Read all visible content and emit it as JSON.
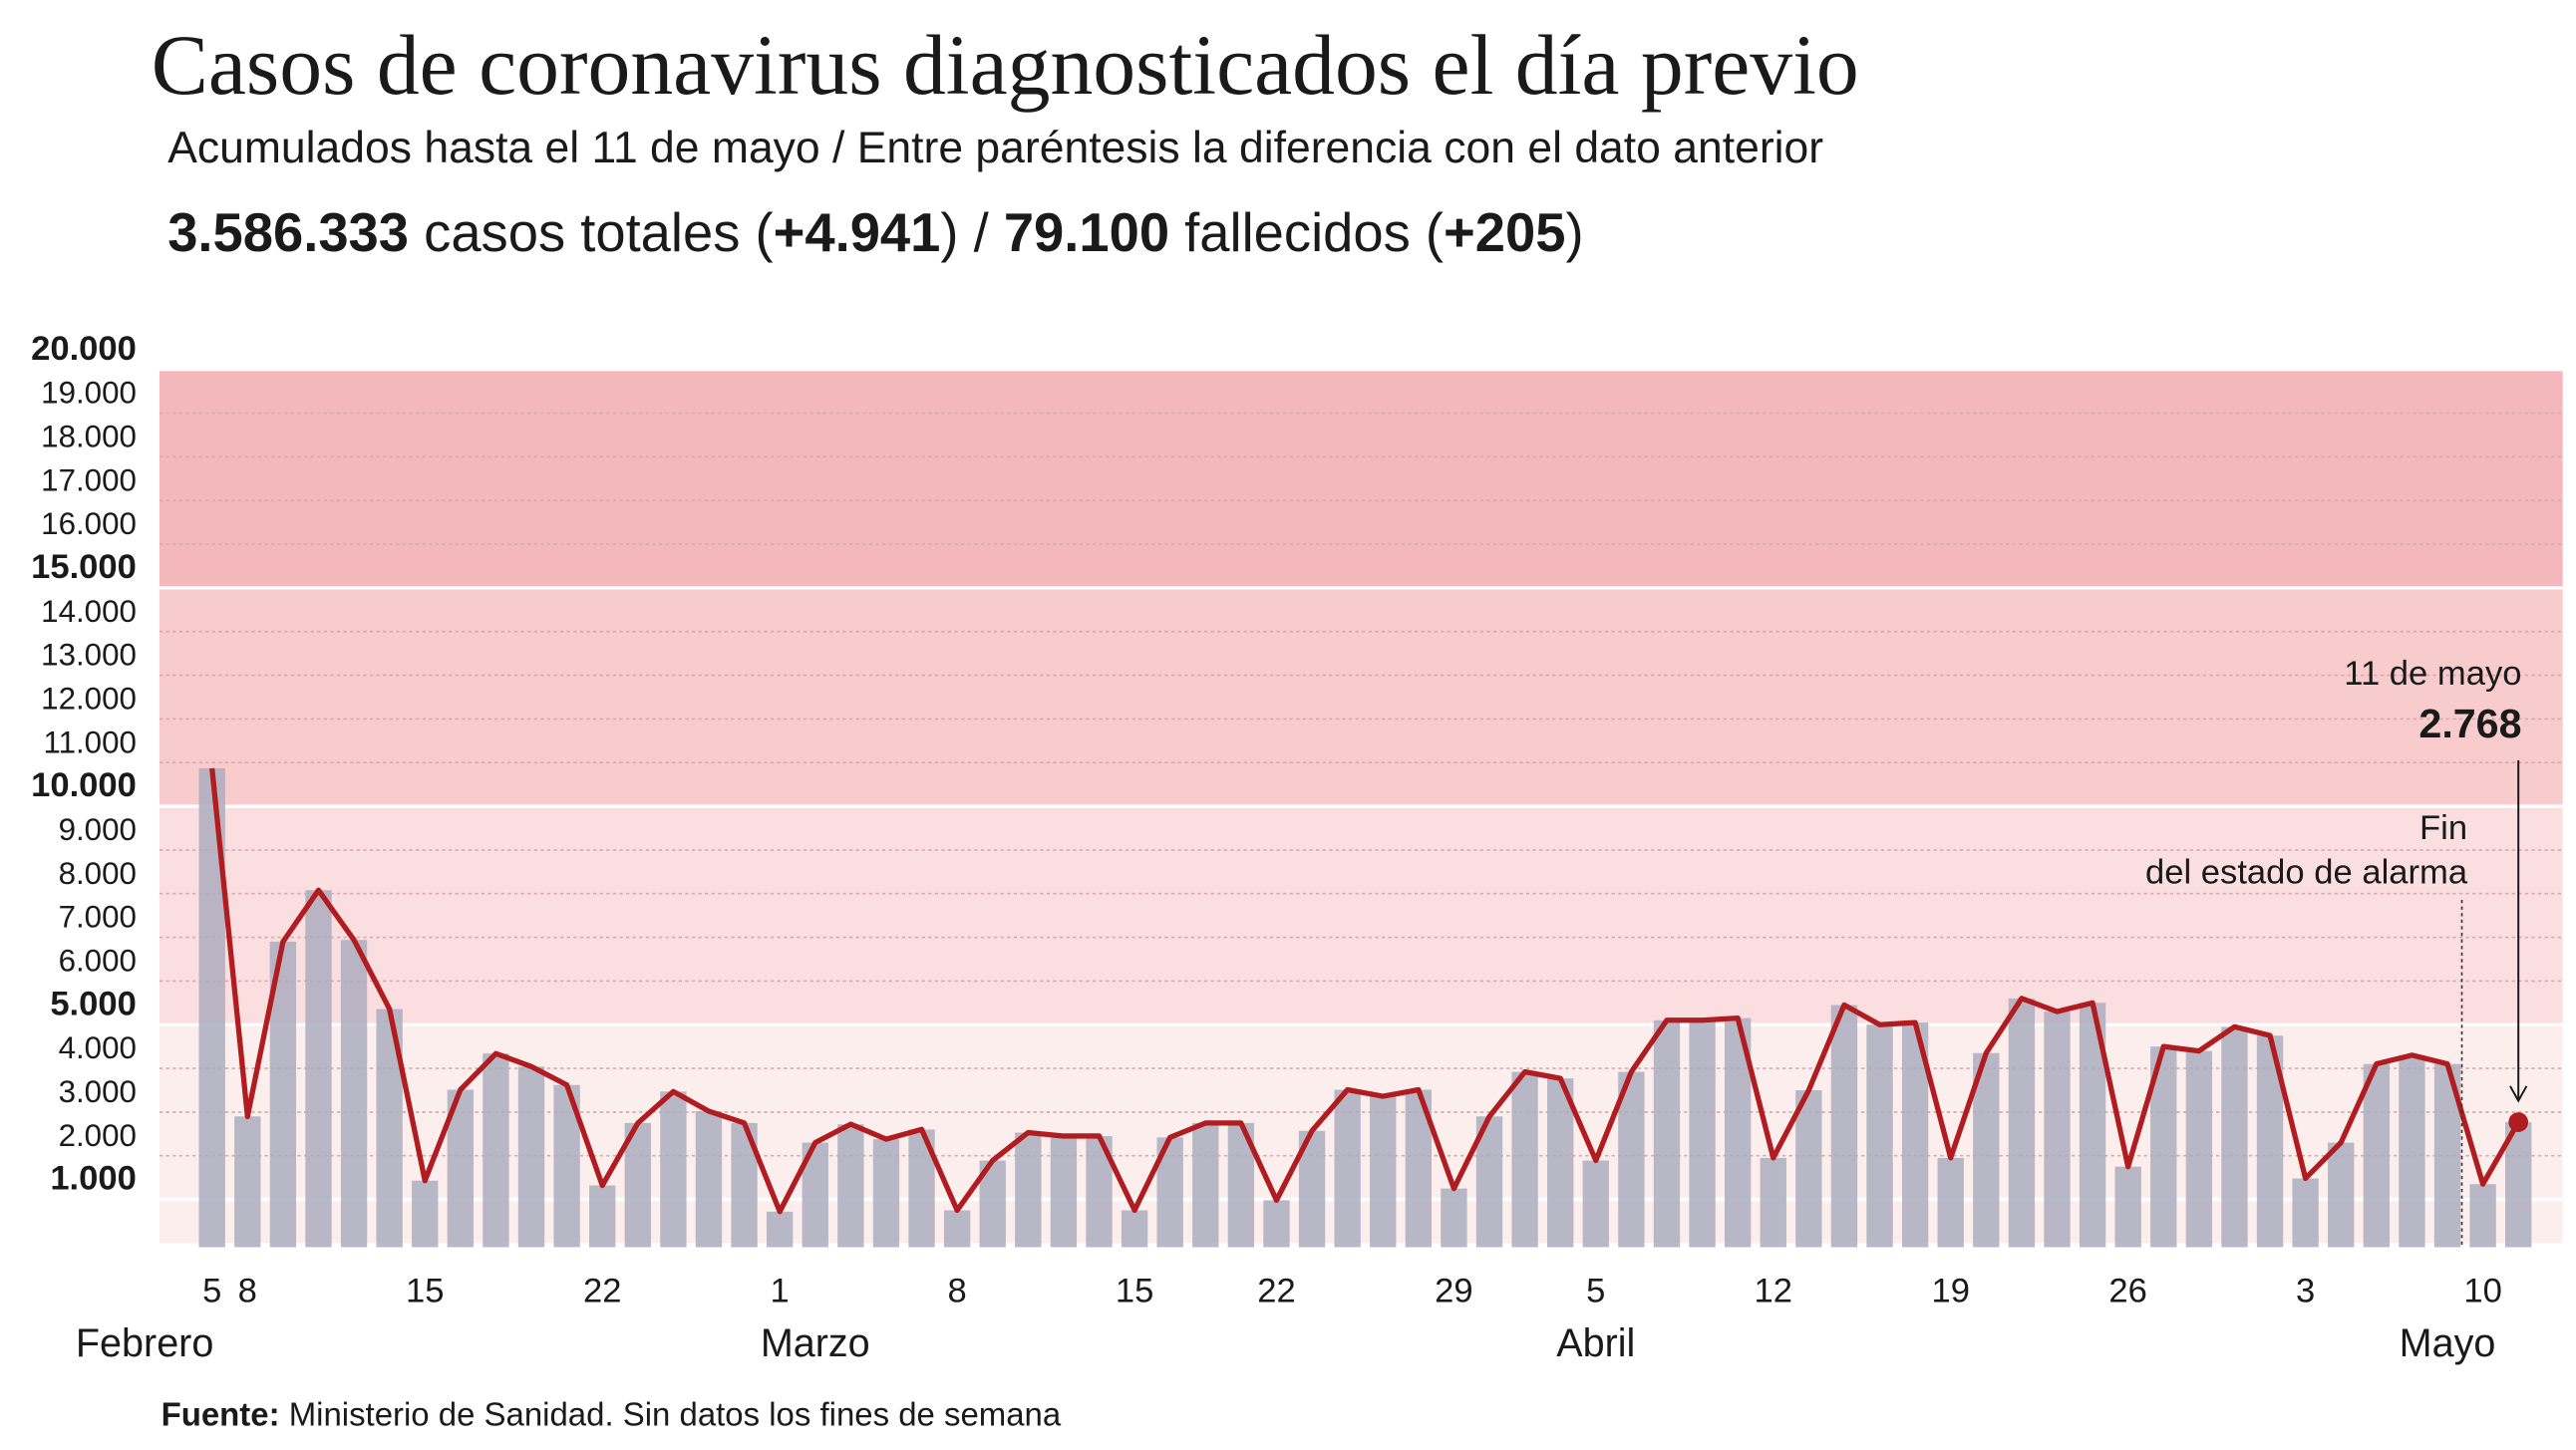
{
  "chart_data": {
    "type": "bar-line",
    "title": "Casos de coronavirus diagnosticados el día previo",
    "subtitle": "Acumulados hasta el 11 de mayo / Entre paréntesis la diferencia con el dato anterior",
    "summary": [
      {
        "text": "3.586.333",
        "bold": true
      },
      {
        "text": " casos totales (",
        "bold": false
      },
      {
        "text": "+4.941",
        "bold": true
      },
      {
        "text": ") / ",
        "bold": false
      },
      {
        "text": "79.100",
        "bold": true
      },
      {
        "text": " fallecidos (",
        "bold": false
      },
      {
        "text": "+205",
        "bold": true
      },
      {
        "text": ")",
        "bold": false
      }
    ],
    "source": [
      {
        "text": "Fuente:",
        "bold": true
      },
      {
        "text": " Ministerio de Sanidad. Sin datos los fines de semana",
        "bold": false
      }
    ],
    "categories": [
      "5",
      "8",
      null,
      null,
      null,
      null,
      "15",
      null,
      null,
      null,
      null,
      "22",
      null,
      null,
      null,
      null,
      "1",
      null,
      null,
      null,
      null,
      "8",
      null,
      null,
      null,
      null,
      "15",
      null,
      null,
      null,
      "22",
      null,
      null,
      null,
      null,
      "29",
      null,
      null,
      null,
      "5",
      null,
      null,
      null,
      null,
      "12",
      null,
      null,
      null,
      null,
      "19",
      null,
      null,
      null,
      null,
      "26",
      null,
      null,
      null,
      null,
      "3",
      null,
      null,
      null,
      null,
      "10",
      null
    ],
    "month_labels": [
      "Febrero",
      null,
      null,
      null,
      null,
      null,
      null,
      null,
      null,
      null,
      null,
      null,
      null,
      null,
      null,
      null,
      null,
      "Marzo",
      null,
      null,
      null,
      null,
      null,
      null,
      null,
      null,
      null,
      null,
      null,
      null,
      null,
      null,
      null,
      null,
      null,
      null,
      null,
      null,
      null,
      "Abril",
      null,
      null,
      null,
      null,
      null,
      null,
      null,
      null,
      null,
      null,
      null,
      null,
      null,
      null,
      null,
      null,
      null,
      null,
      null,
      null,
      null,
      null,
      null,
      "Mayo",
      null,
      null
    ],
    "values": [
      10870,
      2900,
      6900,
      8080,
      6940,
      5360,
      1430,
      3510,
      4340,
      4040,
      3620,
      1320,
      2750,
      3470,
      3020,
      2750,
      720,
      2300,
      2720,
      2380,
      2600,
      750,
      1890,
      2530,
      2450,
      2450,
      750,
      2420,
      2750,
      2750,
      980,
      2570,
      3510,
      3360,
      3510,
      1250,
      2900,
      3920,
      3770,
      1890,
      3920,
      5100,
      5100,
      5150,
      1950,
      3500,
      5450,
      5000,
      5050,
      1950,
      4350,
      5600,
      5300,
      5500,
      1750,
      4500,
      4400,
      4950,
      4750,
      1480,
      2300,
      4100,
      4300,
      4100,
      1350,
      2768
    ],
    "value_labels": [
      null,
      null,
      null,
      null,
      null,
      null,
      null,
      null,
      null,
      null,
      null,
      null,
      null,
      null,
      null,
      null,
      null,
      null,
      null,
      null,
      null,
      null,
      null,
      null,
      null,
      null,
      null,
      null,
      null,
      null,
      null,
      null,
      null,
      null,
      null,
      null,
      null,
      null,
      null,
      null,
      null,
      null,
      null,
      null,
      null,
      null,
      null,
      null,
      null,
      null,
      null,
      null,
      null,
      null,
      null,
      null,
      null,
      null,
      null,
      null,
      null,
      null,
      null,
      null,
      null,
      "2.768"
    ],
    "bar_color": "#abadbe",
    "line_color": "#b01c1f",
    "ylim": [
      0,
      20000
    ],
    "yticks": [
      {
        "value": 1000,
        "label": "1.000",
        "bold": true
      },
      {
        "value": 2000,
        "label": "2.000"
      },
      {
        "value": 3000,
        "label": "3.000"
      },
      {
        "value": 4000,
        "label": "4.000"
      },
      {
        "value": 5000,
        "label": "5.000",
        "bold": true
      },
      {
        "value": 6000,
        "label": "6.000"
      },
      {
        "value": 7000,
        "label": "7.000"
      },
      {
        "value": 8000,
        "label": "8.000"
      },
      {
        "value": 9000,
        "label": "9.000"
      },
      {
        "value": 10000,
        "label": "10.000",
        "bold": true
      },
      {
        "value": 11000,
        "label": "11.000"
      },
      {
        "value": 12000,
        "label": "12.000"
      },
      {
        "value": 13000,
        "label": "13.000"
      },
      {
        "value": 14000,
        "label": "14.000"
      },
      {
        "value": 15000,
        "label": "15.000",
        "bold": true
      },
      {
        "value": 16000,
        "label": "16.000"
      },
      {
        "value": 17000,
        "label": "17.000"
      },
      {
        "value": 18000,
        "label": "18.000"
      },
      {
        "value": 19000,
        "label": "19.000"
      },
      {
        "value": 20000,
        "label": "20.000",
        "bold": true
      }
    ],
    "bands": [
      {
        "from": 0,
        "to": 5000,
        "color": "#fdeeee"
      },
      {
        "from": 5000,
        "to": 10000,
        "color": "#fbdfe0"
      },
      {
        "from": 10000,
        "to": 15000,
        "color": "#f8cbcd"
      },
      {
        "from": 15000,
        "to": 20000,
        "color": "#f4b8bc"
      }
    ],
    "highlight": {
      "label": "11 de mayo"
    },
    "event": {
      "lines": [
        "Fin",
        "del estado de alarma"
      ]
    },
    "grid": true
  }
}
